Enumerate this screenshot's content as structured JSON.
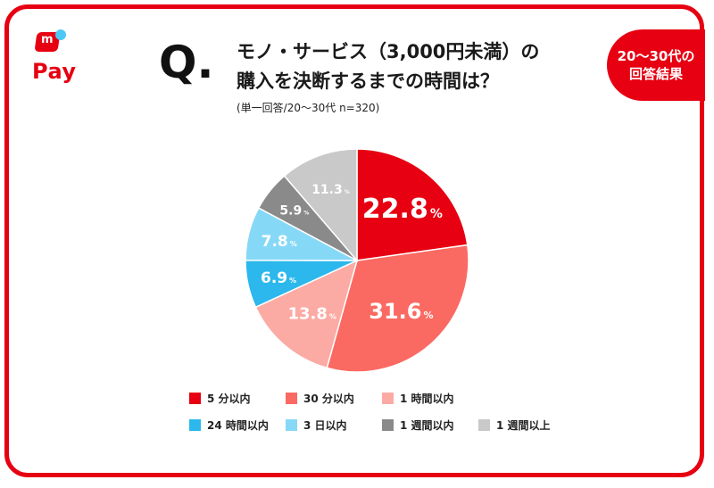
{
  "logo": {
    "mark": "m",
    "text": "Pay"
  },
  "question": {
    "mark": "Q",
    "dot": "."
  },
  "title_line1": "モノ・サービス（3,000円未満）の",
  "title_line2": "購入を決断するまでの時間は？",
  "subtitle": "(単一回答/20〜30代 n=320)",
  "badge": {
    "line1": "20〜30代の",
    "line2": "回答結果"
  },
  "chart_data": {
    "type": "pie",
    "unit": "%",
    "slices": [
      {
        "label": "5 分以内",
        "value": 22.8,
        "color": "#e60012",
        "text_color": "#ffffff"
      },
      {
        "label": "30 分以内",
        "value": 31.6,
        "color": "#fa6a62",
        "text_color": "#ffffff"
      },
      {
        "label": "1 時間以内",
        "value": 13.8,
        "color": "#fcaaa4",
        "text_color": "#ffffff"
      },
      {
        "label": "24 時間以内",
        "value": 6.9,
        "color": "#2cb8ec",
        "text_color": "#ffffff"
      },
      {
        "label": "3 日以内",
        "value": 7.8,
        "color": "#86d8f7",
        "text_color": "#ffffff"
      },
      {
        "label": "1 週間以内",
        "value": 5.9,
        "color": "#8a8a8a",
        "text_color": "#ffffff"
      },
      {
        "label": "1 週間以上",
        "value": 11.3,
        "color": "#c9c9c9",
        "text_color": "#ffffff"
      }
    ]
  }
}
